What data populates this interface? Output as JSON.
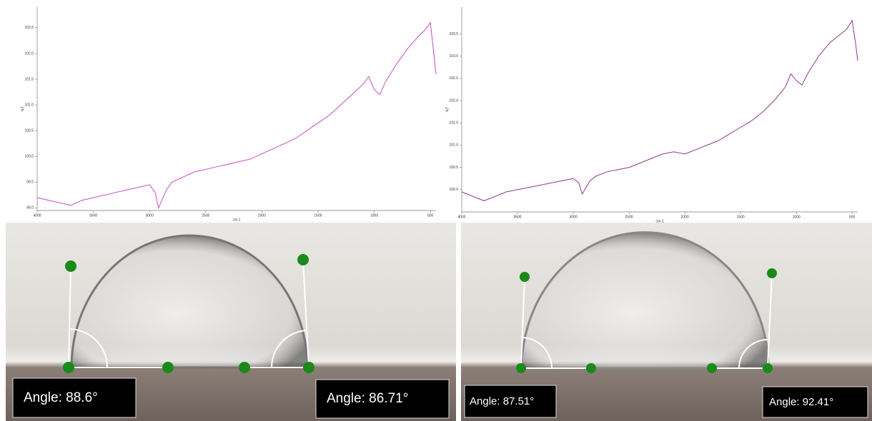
{
  "chart_data": [
    {
      "type": "line",
      "x_label": "cm-1",
      "y_label": "%T",
      "x": [
        4000,
        3900,
        3800,
        3700,
        3600,
        3500,
        3400,
        3300,
        3200,
        3100,
        3000,
        2950,
        2920,
        2850,
        2800,
        2700,
        2600,
        2500,
        2400,
        2300,
        2200,
        2100,
        2000,
        1900,
        1800,
        1700,
        1600,
        1500,
        1400,
        1300,
        1200,
        1100,
        1050,
        1000,
        950,
        900,
        800,
        700,
        600,
        550,
        500,
        470,
        450
      ],
      "series": [
        {
          "color": "#c24cc8",
          "values": [
            99.2,
            99.15,
            99.1,
            99.05,
            99.15,
            99.2,
            99.25,
            99.3,
            99.35,
            99.4,
            99.45,
            99.3,
            99.0,
            99.35,
            99.5,
            99.6,
            99.7,
            99.75,
            99.8,
            99.85,
            99.9,
            99.95,
            100.05,
            100.15,
            100.25,
            100.35,
            100.5,
            100.65,
            100.8,
            101.0,
            101.2,
            101.4,
            101.55,
            101.3,
            101.2,
            101.45,
            101.8,
            102.1,
            102.35,
            102.45,
            102.6,
            102.0,
            101.6
          ]
        }
      ],
      "xlim": [
        4000,
        450
      ],
      "xticks": [
        4000,
        3500,
        3000,
        2500,
        2000,
        1500,
        1000,
        500
      ],
      "ylim": [
        98.95,
        102.9
      ],
      "yticks": [
        {
          "value": 99,
          "label": "99.0"
        },
        99.5,
        {
          "value": 100,
          "label": "100.0"
        },
        100.5,
        {
          "value": 101,
          "label": "101.0"
        },
        101.5,
        {
          "value": 102,
          "label": "102.0"
        },
        102.5
      ]
    },
    {
      "type": "line",
      "x_label": "cm-1",
      "y_label": "%T",
      "x": [
        4000,
        3900,
        3800,
        3700,
        3600,
        3500,
        3400,
        3300,
        3200,
        3100,
        3000,
        2950,
        2920,
        2850,
        2800,
        2700,
        2600,
        2500,
        2400,
        2300,
        2200,
        2100,
        2000,
        1900,
        1800,
        1700,
        1600,
        1500,
        1400,
        1300,
        1200,
        1100,
        1050,
        1000,
        950,
        900,
        800,
        700,
        600,
        550,
        500,
        470,
        450
      ],
      "series": [
        {
          "color": "#8c3a8a",
          "values": [
            99.95,
            99.85,
            99.75,
            99.85,
            99.95,
            100.0,
            100.05,
            100.1,
            100.15,
            100.2,
            100.25,
            100.15,
            99.9,
            100.2,
            100.3,
            100.4,
            100.45,
            100.5,
            100.6,
            100.7,
            100.8,
            100.85,
            100.8,
            100.9,
            101.0,
            101.1,
            101.25,
            101.4,
            101.55,
            101.75,
            102.0,
            102.3,
            102.6,
            102.45,
            102.35,
            102.6,
            103.0,
            103.3,
            103.5,
            103.6,
            103.8,
            103.3,
            102.9
          ]
        }
      ],
      "xlim": [
        4000,
        450
      ],
      "xticks": [
        4000,
        3500,
        3000,
        2500,
        2000,
        1500,
        1000,
        500
      ],
      "ylim": [
        99.5,
        104.1
      ],
      "yticks": [
        {
          "value": 100,
          "label": "100.0"
        },
        100.5,
        {
          "value": 101,
          "label": "101.0"
        },
        101.5,
        {
          "value": 102,
          "label": "102.0"
        },
        102.5,
        {
          "value": 103,
          "label": "103.0"
        },
        103.5
      ]
    }
  ],
  "photos": [
    {
      "angles": [
        "Angle: 88.6°",
        "Angle: 86.71°"
      ]
    },
    {
      "angles": [
        "Angle: 87.51°",
        "Angle: 92.41°"
      ]
    }
  ]
}
